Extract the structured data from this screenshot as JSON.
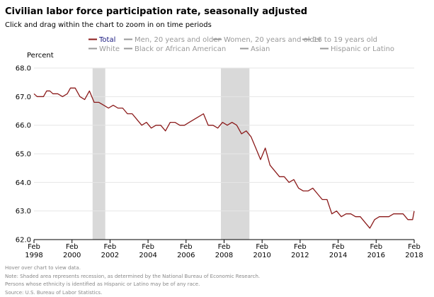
{
  "header": {
    "title": "Civilian labor force participation rate, seasonally adjusted",
    "subtitle": "Click and drag within the chart to zoom in on time periods"
  },
  "footnotes": [
    "Hover over chart to view data.",
    "Note: Shaded area represents recession, as determined by the National Bureau of Economic Research.",
    "Persons whose ethnicity is identified as Hispanic or Latino may be of any race.",
    "Source: U.S. Bureau of Labor Statistics."
  ],
  "colors": {
    "total": "#8b1a1a",
    "inactive": "#999999",
    "recession": "#d9d9d9",
    "grid": "#e6e6e6"
  },
  "chart_data": {
    "type": "line",
    "ylabel": "Percent",
    "ylim": [
      62.0,
      68.0
    ],
    "yticks": [
      "62.0",
      "63.0",
      "64.0",
      "65.0",
      "66.0",
      "67.0",
      "68.0"
    ],
    "xlim": [
      "1998-02",
      "2018-02"
    ],
    "xticks": [
      {
        "month": "Feb",
        "year": "1998"
      },
      {
        "month": "Feb",
        "year": "2000"
      },
      {
        "month": "Feb",
        "year": "2002"
      },
      {
        "month": "Feb",
        "year": "2004"
      },
      {
        "month": "Feb",
        "year": "2006"
      },
      {
        "month": "Feb",
        "year": "2008"
      },
      {
        "month": "Feb",
        "year": "2010"
      },
      {
        "month": "Feb",
        "year": "2012"
      },
      {
        "month": "Feb",
        "year": "2014"
      },
      {
        "month": "Feb",
        "year": "2016"
      },
      {
        "month": "Feb",
        "year": "2018"
      }
    ],
    "grid": true,
    "legend_position": "top",
    "legend": [
      {
        "label": "Total",
        "active": true
      },
      {
        "label": "Men, 20 years and older",
        "active": false
      },
      {
        "label": "Women, 20 years and older",
        "active": false
      },
      {
        "label": "16 to 19 years old",
        "active": false
      },
      {
        "label": "White",
        "active": false
      },
      {
        "label": "Black or African American",
        "active": false
      },
      {
        "label": "Asian",
        "active": false
      },
      {
        "label": "Hispanic or Latino",
        "active": false
      }
    ],
    "recessions": [
      {
        "start": "2001-03",
        "end": "2001-11"
      },
      {
        "start": "2007-12",
        "end": "2009-06"
      }
    ],
    "series": [
      {
        "name": "Total",
        "points": [
          [
            "1998-02",
            67.1
          ],
          [
            "1998-04",
            67.0
          ],
          [
            "1998-08",
            67.0
          ],
          [
            "1998-10",
            67.2
          ],
          [
            "1998-12",
            67.2
          ],
          [
            "1999-02",
            67.1
          ],
          [
            "1999-05",
            67.1
          ],
          [
            "1999-08",
            67.0
          ],
          [
            "1999-11",
            67.1
          ],
          [
            "2000-01",
            67.3
          ],
          [
            "2000-04",
            67.3
          ],
          [
            "2000-07",
            67.0
          ],
          [
            "2000-10",
            66.9
          ],
          [
            "2001-01",
            67.2
          ],
          [
            "2001-04",
            66.8
          ],
          [
            "2001-07",
            66.8
          ],
          [
            "2001-10",
            66.7
          ],
          [
            "2002-01",
            66.6
          ],
          [
            "2002-04",
            66.7
          ],
          [
            "2002-07",
            66.6
          ],
          [
            "2002-10",
            66.6
          ],
          [
            "2003-01",
            66.4
          ],
          [
            "2003-04",
            66.4
          ],
          [
            "2003-07",
            66.2
          ],
          [
            "2003-10",
            66.0
          ],
          [
            "2004-01",
            66.1
          ],
          [
            "2004-04",
            65.9
          ],
          [
            "2004-07",
            66.0
          ],
          [
            "2004-10",
            66.0
          ],
          [
            "2005-01",
            65.8
          ],
          [
            "2005-04",
            66.1
          ],
          [
            "2005-07",
            66.1
          ],
          [
            "2005-10",
            66.0
          ],
          [
            "2006-01",
            66.0
          ],
          [
            "2006-04",
            66.1
          ],
          [
            "2006-07",
            66.2
          ],
          [
            "2006-10",
            66.3
          ],
          [
            "2007-01",
            66.4
          ],
          [
            "2007-04",
            66.0
          ],
          [
            "2007-07",
            66.0
          ],
          [
            "2007-10",
            65.9
          ],
          [
            "2008-01",
            66.1
          ],
          [
            "2008-04",
            66.0
          ],
          [
            "2008-07",
            66.1
          ],
          [
            "2008-10",
            66.0
          ],
          [
            "2009-01",
            65.7
          ],
          [
            "2009-04",
            65.8
          ],
          [
            "2009-07",
            65.6
          ],
          [
            "2009-10",
            65.2
          ],
          [
            "2010-01",
            64.8
          ],
          [
            "2010-04",
            65.2
          ],
          [
            "2010-07",
            64.6
          ],
          [
            "2010-10",
            64.4
          ],
          [
            "2011-01",
            64.2
          ],
          [
            "2011-04",
            64.2
          ],
          [
            "2011-07",
            64.0
          ],
          [
            "2011-10",
            64.1
          ],
          [
            "2012-01",
            63.8
          ],
          [
            "2012-04",
            63.7
          ],
          [
            "2012-07",
            63.7
          ],
          [
            "2012-10",
            63.8
          ],
          [
            "2013-01",
            63.6
          ],
          [
            "2013-04",
            63.4
          ],
          [
            "2013-07",
            63.4
          ],
          [
            "2013-10",
            62.9
          ],
          [
            "2014-01",
            63.0
          ],
          [
            "2014-04",
            62.8
          ],
          [
            "2014-07",
            62.9
          ],
          [
            "2014-10",
            62.9
          ],
          [
            "2015-01",
            62.8
          ],
          [
            "2015-04",
            62.8
          ],
          [
            "2015-07",
            62.6
          ],
          [
            "2015-10",
            62.4
          ],
          [
            "2016-01",
            62.7
          ],
          [
            "2016-04",
            62.8
          ],
          [
            "2016-07",
            62.8
          ],
          [
            "2016-10",
            62.8
          ],
          [
            "2017-01",
            62.9
          ],
          [
            "2017-04",
            62.9
          ],
          [
            "2017-07",
            62.9
          ],
          [
            "2017-10",
            62.7
          ],
          [
            "2018-01",
            62.7
          ],
          [
            "2018-02",
            63.0
          ]
        ]
      }
    ]
  }
}
